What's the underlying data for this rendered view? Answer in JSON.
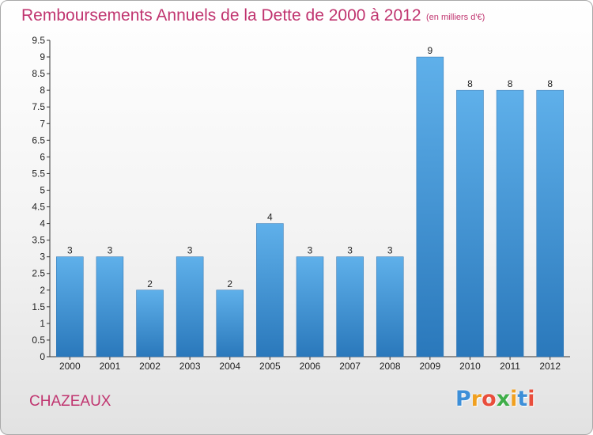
{
  "header": {
    "title": "Remboursements Annuels de la Dette de 2000 à 2012",
    "unit": "(en milliers d'€)"
  },
  "footer": {
    "commune": "CHAZEAUX",
    "logo_letters": [
      "P",
      "r",
      "o",
      "x",
      "i",
      "t",
      "i"
    ],
    "logo_colors": [
      "#3d8fd8",
      "#f0a020",
      "#e94e3c",
      "#3fae49",
      "#f0a020",
      "#3d8fd8",
      "#e94e3c"
    ]
  },
  "chart_data": {
    "type": "bar",
    "categories": [
      "2000",
      "2001",
      "2002",
      "2003",
      "2004",
      "2005",
      "2006",
      "2007",
      "2008",
      "2009",
      "2010",
      "2011",
      "2012"
    ],
    "values": [
      3,
      3,
      2,
      3,
      2,
      4,
      3,
      3,
      3,
      9,
      8,
      8,
      8
    ],
    "data_labels": [
      "3",
      "3",
      "2",
      "3",
      "2",
      "4",
      "3",
      "3",
      "3",
      "9",
      "8",
      "8",
      "8"
    ],
    "title": "Remboursements Annuels de la Dette de 2000 à 2012",
    "xlabel": "",
    "ylabel": "",
    "ylim": [
      0,
      9.5
    ],
    "yticks": [
      "0",
      "0.5",
      "1",
      "1.5",
      "2",
      "2.5",
      "3",
      "3.5",
      "4",
      "4.5",
      "5",
      "5.5",
      "6",
      "6.5",
      "7",
      "7.5",
      "8",
      "8.5",
      "9",
      "9.5"
    ],
    "grid": false,
    "bar_color": "#3f94d6"
  }
}
